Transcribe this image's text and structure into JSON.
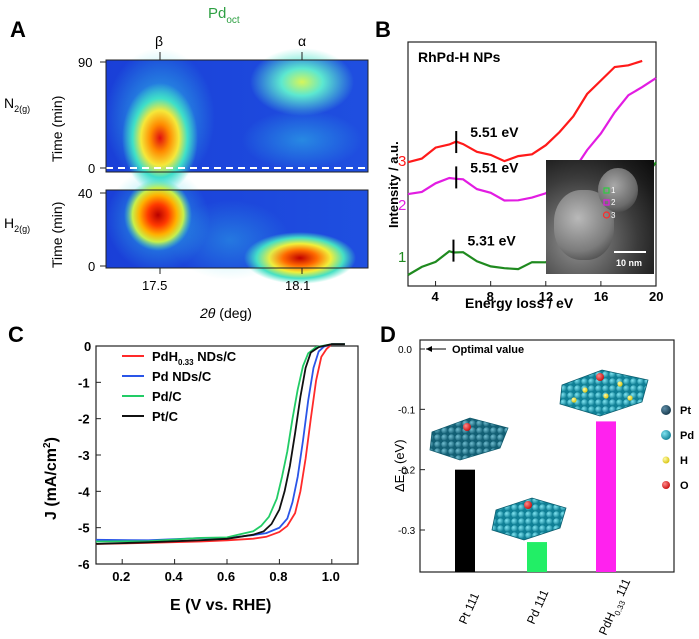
{
  "panels": {
    "A": {
      "label": "A",
      "header": "Pd",
      "header_sub": "oct",
      "peak_beta": "β",
      "peak_alpha": "α",
      "top_gas": "N",
      "top_gas_sub": "2(g)",
      "bottom_gas": "H",
      "bottom_gas_sub": "2(g)",
      "top_ylabel": "Time (min)",
      "bottom_ylabel": "Time (min)",
      "top_ticks": [
        "90",
        "0"
      ],
      "bottom_ticks": [
        "40",
        "0"
      ],
      "x_ticks": [
        "17.5",
        "18.1"
      ],
      "xlabel_italic": "2θ",
      "xlabel_rest": " (deg)"
    },
    "B": {
      "label": "B",
      "title": "RhPd-H NPs",
      "ylabel": "Intensity / a.u.",
      "xlabel": "Energy loss / eV",
      "x_ticks": [
        "4",
        "8",
        "12",
        "16",
        "20"
      ],
      "scale_bar": "10 nm",
      "inset_markers": [
        "1",
        "2",
        "3"
      ]
    },
    "C": {
      "label": "C",
      "ylabel": "J (mA/cm",
      "ylabel_sup": "2",
      "ylabel_end": ")",
      "xlabel": "E (V vs. RHE)",
      "legend_extra_sub": "0.33",
      "legend_extra_tail": " NDs/C"
    },
    "D": {
      "label": "D",
      "ylabel_pre": "ΔE",
      "ylabel_sub": "O",
      "ylabel_post": " (eV)",
      "optimal": "Optimal value",
      "y_ticks": [
        "0.0",
        "-0.1",
        "-0.2",
        "-0.3"
      ],
      "bar_labels": [
        "Pt 111",
        "Pd 111",
        "PdH"
      ],
      "pdh_sub": "0.33",
      "pdh_tail": " 111",
      "legend": [
        {
          "label": "Pt",
          "color": "#1f4e66"
        },
        {
          "label": "Pd",
          "color": "#1aa0b8"
        },
        {
          "label": "H",
          "color": "#f3e22a"
        },
        {
          "label": "O",
          "color": "#e01c1c"
        }
      ]
    }
  },
  "chart_data": [
    {
      "type": "heatmap",
      "title": "Pd oct in-situ diffraction (A)",
      "xlabel": "2θ (deg)",
      "x_ticks": [
        17.5,
        18.1
      ],
      "peaks": [
        "β",
        "α"
      ],
      "top": {
        "gas": "N2(g)",
        "ylabel": "Time (min)",
        "ylim": [
          0,
          90
        ]
      },
      "bottom": {
        "gas": "H2(g)",
        "ylabel": "Time (min)",
        "ylim": [
          0,
          40
        ]
      }
    },
    {
      "type": "line",
      "title": "RhPd-H NPs",
      "xlabel": "Energy loss / eV",
      "ylabel": "Intensity / a.u.",
      "xlim": [
        2,
        20
      ],
      "series": [
        {
          "name": "1",
          "color": "#1f8a1f",
          "peak_label": "5.31 eV",
          "x": [
            2,
            3,
            4,
            5,
            5.3,
            6,
            7,
            8,
            9,
            10,
            11,
            12,
            13,
            14,
            15,
            16,
            17,
            18,
            19,
            20
          ],
          "y": [
            0.45,
            0.75,
            1.05,
            1.35,
            1.45,
            1.32,
            1.05,
            0.8,
            0.7,
            0.75,
            0.9,
            1.05,
            1.3,
            1.5,
            1.8,
            2.4,
            3.1,
            3.8,
            4.4,
            5.0
          ]
        },
        {
          "name": "2",
          "color": "#e21ce2",
          "peak_label": "5.51 eV",
          "x": [
            2,
            3,
            4,
            5,
            5.5,
            6,
            7,
            8,
            9,
            10,
            11,
            12,
            13,
            14,
            15,
            16,
            17,
            18,
            19,
            20
          ],
          "y": [
            3.7,
            3.9,
            4.2,
            4.4,
            4.45,
            4.3,
            4.05,
            3.75,
            3.55,
            3.5,
            3.6,
            3.85,
            4.25,
            4.8,
            5.5,
            6.3,
            7.1,
            7.8,
            8.2,
            8.45
          ]
        },
        {
          "name": "3",
          "color": "#ff1a1a",
          "peak_label": "5.51 eV",
          "x": [
            2,
            3,
            4,
            5,
            5.5,
            6,
            7,
            8,
            9,
            10,
            11,
            12,
            13,
            14,
            15,
            16,
            17,
            18,
            19
          ],
          "y": [
            5.0,
            5.3,
            5.6,
            5.85,
            5.9,
            5.8,
            5.55,
            5.3,
            5.2,
            5.25,
            5.45,
            5.75,
            6.3,
            7.0,
            7.8,
            8.5,
            8.9,
            9.1,
            9.2
          ]
        }
      ]
    },
    {
      "type": "line",
      "title": "",
      "xlabel": "E (V vs. RHE)",
      "ylabel": "J (mA/cm2)",
      "xlim": [
        0.1,
        1.1
      ],
      "ylim": [
        -6,
        0
      ],
      "x_ticks": [
        0.2,
        0.4,
        0.6,
        0.8,
        1.0
      ],
      "y_ticks": [
        0,
        -1,
        -2,
        -3,
        -4,
        -5,
        -6
      ],
      "series": [
        {
          "name": "PdH",
          "legend_sub": "0.33",
          "legend_tail": " NDs/C",
          "color": "#ff2a2a",
          "x": [
            0.1,
            0.3,
            0.5,
            0.6,
            0.7,
            0.75,
            0.8,
            0.83,
            0.86,
            0.88,
            0.9,
            0.92,
            0.94,
            0.96,
            0.98,
            1.0,
            1.05
          ],
          "y": [
            -5.45,
            -5.42,
            -5.38,
            -5.35,
            -5.3,
            -5.25,
            -5.12,
            -4.95,
            -4.6,
            -4.0,
            -3.1,
            -2.0,
            -0.95,
            -0.3,
            -0.08,
            0.05,
            0.05
          ]
        },
        {
          "name": "Pd NDs/C",
          "color": "#2a55e8",
          "x": [
            0.1,
            0.3,
            0.5,
            0.6,
            0.7,
            0.75,
            0.8,
            0.83,
            0.85,
            0.87,
            0.89,
            0.91,
            0.93,
            0.95,
            0.97,
            1.0,
            1.05
          ],
          "y": [
            -5.35,
            -5.33,
            -5.3,
            -5.27,
            -5.22,
            -5.15,
            -5.0,
            -4.75,
            -4.3,
            -3.6,
            -2.6,
            -1.5,
            -0.6,
            -0.15,
            -0.02,
            0.05,
            0.05
          ]
        },
        {
          "name": "Pd/C",
          "color": "#22cc66",
          "x": [
            0.1,
            0.3,
            0.5,
            0.6,
            0.65,
            0.7,
            0.73,
            0.76,
            0.79,
            0.81,
            0.83,
            0.85,
            0.87,
            0.89,
            0.91,
            0.94,
            1.0,
            1.05
          ],
          "y": [
            -5.4,
            -5.35,
            -5.3,
            -5.25,
            -5.2,
            -5.1,
            -4.95,
            -4.7,
            -4.2,
            -3.6,
            -2.9,
            -2.0,
            -1.2,
            -0.55,
            -0.2,
            -0.03,
            0.05,
            0.05
          ]
        },
        {
          "name": "Pt/C",
          "color": "#111111",
          "x": [
            0.1,
            0.3,
            0.5,
            0.6,
            0.7,
            0.74,
            0.77,
            0.8,
            0.82,
            0.84,
            0.86,
            0.88,
            0.9,
            0.92,
            0.95,
            1.0,
            1.05
          ],
          "y": [
            -5.45,
            -5.4,
            -5.35,
            -5.3,
            -5.2,
            -5.1,
            -4.9,
            -4.5,
            -4.0,
            -3.3,
            -2.4,
            -1.4,
            -0.6,
            -0.18,
            -0.03,
            0.05,
            0.05
          ]
        }
      ]
    },
    {
      "type": "bar",
      "title": "",
      "ylabel": "ΔE_O (eV)",
      "ylim": [
        -0.36,
        0.02
      ],
      "categories": [
        "Pt 111",
        "Pd 111",
        "PdH0.33 111"
      ],
      "values": [
        -0.2,
        -0.32,
        -0.12
      ],
      "colors": [
        "#000000",
        "#22ee66",
        "#ff22ee"
      ],
      "annotation": {
        "text": "Optimal value",
        "y": 0.0
      }
    }
  ]
}
